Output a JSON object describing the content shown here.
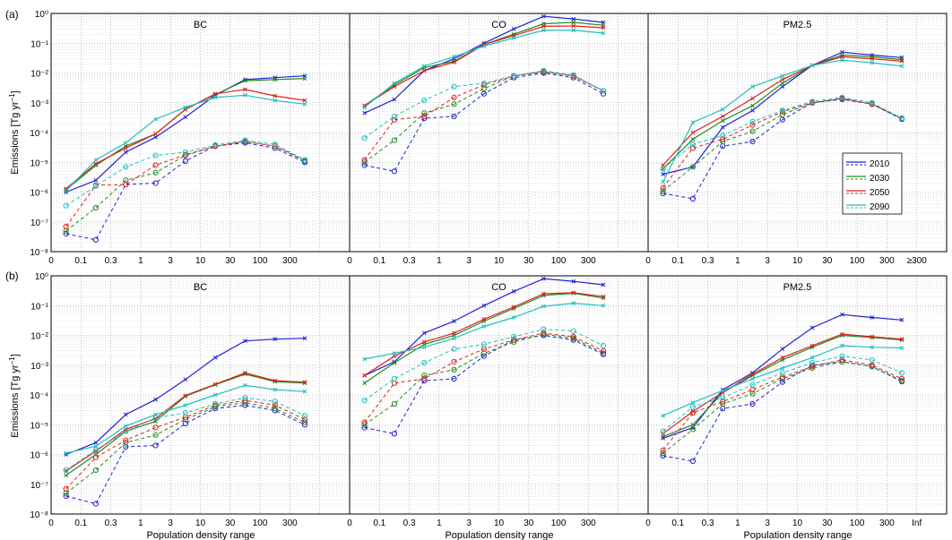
{
  "figure": {
    "row_labels": [
      "(a)",
      "(b)"
    ],
    "ylabel_main": "Emissions [Tg yr",
    "ylabel_sup": "−1",
    "ylabel_end": "]",
    "xlabel": "Population density range",
    "colors": {
      "2010": "#1f1fd6",
      "2030": "#1f8a1f",
      "2050": "#e01f1f",
      "2090": "#1fbfbf"
    },
    "legend": [
      "2010",
      "2030",
      "2050",
      "2090"
    ]
  },
  "chart_data": [
    {
      "panel": "a-BC",
      "type": "line",
      "title": "BC",
      "x": [
        0.05,
        0.2,
        0.5,
        1.5,
        5,
        15,
        50,
        150,
        500
      ],
      "x_tick_labels": [
        "0",
        "0.1",
        "0.3",
        "1",
        "3",
        "10",
        "30",
        "100",
        "300"
      ],
      "y_tick_labels": [
        "10⁰",
        "10⁻¹",
        "10⁻²",
        "10⁻³",
        "10⁻⁴",
        "10⁻⁵",
        "10⁻⁶",
        "10⁻⁷",
        "10⁻⁸"
      ],
      "ylim": [
        1e-08,
        1
      ],
      "yscale": "log",
      "grid": true,
      "series": [
        {
          "name": "2010",
          "style": "solid",
          "values": [
            1e-06,
            2.5e-06,
            2.2e-05,
            7e-05,
            0.00033,
            0.0018,
            0.006,
            0.007,
            0.008
          ]
        },
        {
          "name": "2030",
          "style": "solid",
          "values": [
            1.2e-06,
            8e-06,
            3.5e-05,
            9e-05,
            0.0006,
            0.0019,
            0.0055,
            0.006,
            0.0065
          ]
        },
        {
          "name": "2050",
          "style": "solid",
          "values": [
            1.3e-06,
            9e-06,
            3e-05,
            9e-05,
            0.0006,
            0.002,
            0.0028,
            0.0017,
            0.0012
          ]
        },
        {
          "name": "2090",
          "style": "solid",
          "values": [
            1.1e-06,
            1.2e-05,
            4.5e-05,
            0.00028,
            0.0007,
            0.0015,
            0.0018,
            0.0012,
            0.0009
          ]
        },
        {
          "name": "2010",
          "style": "dashed",
          "values": [
            4e-08,
            2.5e-08,
            1.8e-06,
            2e-06,
            1.1e-05,
            3.5e-05,
            4.5e-05,
            3e-05,
            1e-05
          ]
        },
        {
          "name": "2030",
          "style": "dashed",
          "values": [
            5e-08,
            3e-07,
            2.5e-06,
            4.5e-06,
            1.7e-05,
            3.5e-05,
            5e-05,
            3.5e-05,
            1.1e-05
          ]
        },
        {
          "name": "2050",
          "style": "dashed",
          "values": [
            7e-08,
            1.7e-06,
            1.8e-06,
            8e-06,
            1.8e-05,
            3.5e-05,
            5e-05,
            3.5e-05,
            1.2e-05
          ]
        },
        {
          "name": "2090",
          "style": "dashed",
          "values": [
            3.5e-07,
            1.6e-06,
            7e-06,
            1.7e-05,
            2.2e-05,
            3.8e-05,
            5.5e-05,
            4e-05,
            1.2e-05
          ]
        }
      ]
    },
    {
      "panel": "a-CO",
      "type": "line",
      "title": "CO",
      "x": [
        0.05,
        0.2,
        0.5,
        1.5,
        5,
        15,
        50,
        150,
        500
      ],
      "x_tick_labels": [
        "0",
        "0.1",
        "0.3",
        "1",
        "3",
        "10",
        "30",
        "100",
        "300"
      ],
      "ylim": [
        1e-08,
        1
      ],
      "yscale": "log",
      "grid": true,
      "series": [
        {
          "name": "2010",
          "style": "solid",
          "values": [
            0.00045,
            0.0013,
            0.012,
            0.03,
            0.1,
            0.3,
            0.8,
            0.65,
            0.5
          ]
        },
        {
          "name": "2030",
          "style": "solid",
          "values": [
            0.0008,
            0.004,
            0.015,
            0.025,
            0.09,
            0.2,
            0.45,
            0.5,
            0.4
          ]
        },
        {
          "name": "2050",
          "style": "solid",
          "values": [
            0.0008,
            0.0035,
            0.012,
            0.023,
            0.09,
            0.18,
            0.37,
            0.38,
            0.33
          ]
        },
        {
          "name": "2090",
          "style": "solid",
          "values": [
            0.0007,
            0.0045,
            0.017,
            0.035,
            0.08,
            0.15,
            0.27,
            0.27,
            0.22
          ]
        },
        {
          "name": "2010",
          "style": "dashed",
          "values": [
            8e-06,
            5e-06,
            0.0003,
            0.00035,
            0.002,
            0.007,
            0.01,
            0.007,
            0.002
          ]
        },
        {
          "name": "2030",
          "style": "dashed",
          "values": [
            1e-05,
            5.5e-05,
            0.00045,
            0.0009,
            0.003,
            0.008,
            0.011,
            0.008,
            0.0025
          ]
        },
        {
          "name": "2050",
          "style": "dashed",
          "values": [
            1.2e-05,
            0.00027,
            0.00035,
            0.0015,
            0.004,
            0.008,
            0.011,
            0.008,
            0.0025
          ]
        },
        {
          "name": "2090",
          "style": "dashed",
          "values": [
            6.5e-05,
            0.00035,
            0.0012,
            0.0035,
            0.0045,
            0.008,
            0.012,
            0.0085,
            0.0025
          ]
        }
      ]
    },
    {
      "panel": "a-PM2.5",
      "type": "line",
      "title": "PM2.5",
      "x": [
        0.05,
        0.2,
        0.5,
        1.5,
        5,
        15,
        50,
        150,
        500
      ],
      "x_tick_labels": [
        "0",
        "0.1",
        "0.3",
        "1",
        "3",
        "10",
        "30",
        "100",
        "300",
        "≥300"
      ],
      "ylim": [
        1e-08,
        1
      ],
      "yscale": "log",
      "grid": true,
      "legend_position": "center-right",
      "series": [
        {
          "name": "2010",
          "style": "solid",
          "values": [
            4e-06,
            7e-06,
            0.00015,
            0.00055,
            0.0035,
            0.018,
            0.05,
            0.04,
            0.033
          ]
        },
        {
          "name": "2030",
          "style": "solid",
          "values": [
            6e-06,
            6e-05,
            0.00025,
            0.0008,
            0.0045,
            0.018,
            0.04,
            0.035,
            0.028
          ]
        },
        {
          "name": "2050",
          "style": "solid",
          "values": [
            8e-06,
            0.0001,
            0.00035,
            0.0014,
            0.006,
            0.018,
            0.035,
            0.03,
            0.025
          ]
        },
        {
          "name": "2090",
          "style": "solid",
          "values": [
            2.2e-06,
            0.00022,
            0.0006,
            0.0035,
            0.008,
            0.018,
            0.027,
            0.022,
            0.017
          ]
        },
        {
          "name": "2010",
          "style": "dashed",
          "values": [
            9e-07,
            6e-07,
            3.5e-05,
            5e-05,
            0.00027,
            0.001,
            0.0013,
            0.0009,
            0.00028
          ]
        },
        {
          "name": "2030",
          "style": "dashed",
          "values": [
            1.1e-06,
            7e-06,
            5e-05,
            0.00011,
            0.0004,
            0.001,
            0.0014,
            0.0009,
            0.0003
          ]
        },
        {
          "name": "2050",
          "style": "dashed",
          "values": [
            1.4e-06,
            3e-05,
            6e-05,
            0.00018,
            0.0005,
            0.001,
            0.0014,
            0.0009,
            0.0003
          ]
        },
        {
          "name": "2090",
          "style": "dashed",
          "values": [
            6e-06,
            4e-05,
            8e-05,
            0.00023,
            0.00055,
            0.0011,
            0.0015,
            0.001,
            0.0003
          ]
        }
      ]
    },
    {
      "panel": "b-BC",
      "type": "line",
      "title": "BC",
      "x": [
        0.05,
        0.2,
        0.5,
        1.5,
        5,
        15,
        50,
        150,
        500
      ],
      "x_tick_labels": [
        "0",
        "0.1",
        "0.3",
        "1",
        "3",
        "10",
        "30",
        "100",
        "300"
      ],
      "y_tick_labels": [
        "10⁰",
        "10⁻¹",
        "10⁻²",
        "10⁻³",
        "10⁻⁴",
        "10⁻⁵",
        "10⁻⁶",
        "10⁻⁷",
        "10⁻⁸"
      ],
      "ylim": [
        1e-08,
        1
      ],
      "yscale": "log",
      "grid": true,
      "series": [
        {
          "name": "2010",
          "style": "solid",
          "values": [
            1e-06,
            2.5e-06,
            2.2e-05,
            7e-05,
            0.00033,
            0.0018,
            0.0065,
            0.0075,
            0.008
          ]
        },
        {
          "name": "2030",
          "style": "solid",
          "values": [
            2e-07,
            1e-06,
            6e-06,
            1.3e-05,
            9e-05,
            0.00022,
            0.0005,
            0.00028,
            0.00025
          ]
        },
        {
          "name": "2050",
          "style": "solid",
          "values": [
            2.8e-07,
            1.3e-06,
            7e-06,
            1.6e-05,
            9.5e-05,
            0.00023,
            0.00055,
            0.0003,
            0.00027
          ]
        },
        {
          "name": "2090",
          "style": "solid",
          "values": [
            1.1e-06,
            1.9e-06,
            9e-06,
            2.2e-05,
            4.5e-05,
            0.0001,
            0.00021,
            0.00015,
            0.00013
          ]
        },
        {
          "name": "2010",
          "style": "dashed",
          "values": [
            4e-08,
            2.2e-08,
            1.8e-06,
            2e-06,
            1.1e-05,
            3.5e-05,
            4.5e-05,
            3e-05,
            1e-05
          ]
        },
        {
          "name": "2030",
          "style": "dashed",
          "values": [
            5e-08,
            3e-07,
            2.5e-06,
            4.5e-06,
            1.5e-05,
            4e-05,
            5.5e-05,
            3.5e-05,
            1.2e-05
          ]
        },
        {
          "name": "2050",
          "style": "dashed",
          "values": [
            7e-08,
            8e-07,
            3e-06,
            8e-06,
            1.8e-05,
            4.5e-05,
            6.5e-05,
            4.5e-05,
            1.5e-05
          ]
        },
        {
          "name": "2090",
          "style": "dashed",
          "values": [
            3e-07,
            1.4e-06,
            6e-06,
            1.7e-05,
            2.5e-05,
            5e-05,
            8e-05,
            6e-05,
            2e-05
          ]
        }
      ]
    },
    {
      "panel": "b-CO",
      "type": "line",
      "title": "CO",
      "x": [
        0.05,
        0.2,
        0.5,
        1.5,
        5,
        15,
        50,
        150,
        500
      ],
      "x_tick_labels": [
        "0",
        "0.1",
        "0.3",
        "1",
        "3",
        "10",
        "30",
        "100",
        "300"
      ],
      "ylim": [
        1e-08,
        1
      ],
      "yscale": "log",
      "grid": true,
      "series": [
        {
          "name": "2010",
          "style": "solid",
          "values": [
            0.00045,
            0.0013,
            0.012,
            0.03,
            0.1,
            0.3,
            0.8,
            0.65,
            0.5
          ]
        },
        {
          "name": "2030",
          "style": "solid",
          "values": [
            0.00025,
            0.0012,
            0.005,
            0.01,
            0.03,
            0.08,
            0.22,
            0.26,
            0.18
          ]
        },
        {
          "name": "2050",
          "style": "solid",
          "values": [
            0.00045,
            0.002,
            0.006,
            0.012,
            0.035,
            0.09,
            0.25,
            0.27,
            0.2
          ]
        },
        {
          "name": "2090",
          "style": "solid",
          "values": [
            0.0016,
            0.0025,
            0.004,
            0.008,
            0.02,
            0.04,
            0.095,
            0.12,
            0.1
          ]
        },
        {
          "name": "2010",
          "style": "dashed",
          "values": [
            8e-06,
            5e-06,
            0.0003,
            0.00035,
            0.002,
            0.007,
            0.01,
            0.007,
            0.0023
          ]
        },
        {
          "name": "2030",
          "style": "dashed",
          "values": [
            1e-05,
            5e-05,
            0.00045,
            0.0007,
            0.0025,
            0.006,
            0.011,
            0.008,
            0.0025
          ]
        },
        {
          "name": "2050",
          "style": "dashed",
          "values": [
            1.2e-05,
            0.00025,
            0.00035,
            0.0013,
            0.0035,
            0.007,
            0.012,
            0.009,
            0.003
          ]
        },
        {
          "name": "2090",
          "style": "dashed",
          "values": [
            6.5e-05,
            0.00035,
            0.0012,
            0.0035,
            0.005,
            0.009,
            0.016,
            0.014,
            0.0045
          ]
        }
      ]
    },
    {
      "panel": "b-PM2.5",
      "type": "line",
      "title": "PM2.5",
      "x": [
        0.05,
        0.2,
        0.5,
        1.5,
        5,
        15,
        50,
        150,
        500
      ],
      "x_tick_labels": [
        "0",
        "0.1",
        "0.3",
        "1",
        "3",
        "10",
        "30",
        "100",
        "300",
        "Inf"
      ],
      "ylim": [
        1e-08,
        1
      ],
      "yscale": "log",
      "grid": true,
      "series": [
        {
          "name": "2010",
          "style": "solid",
          "values": [
            3.5e-06,
            8e-06,
            0.00015,
            0.00055,
            0.0035,
            0.018,
            0.05,
            0.04,
            0.033
          ]
        },
        {
          "name": "2030",
          "style": "solid",
          "values": [
            4e-06,
            1e-05,
            0.00012,
            0.00045,
            0.0015,
            0.004,
            0.01,
            0.0085,
            0.007
          ]
        },
        {
          "name": "2050",
          "style": "solid",
          "values": [
            5e-06,
            2.8e-05,
            0.00012,
            0.0005,
            0.0018,
            0.0045,
            0.011,
            0.009,
            0.0075
          ]
        },
        {
          "name": "2090",
          "style": "solid",
          "values": [
            2e-05,
            5.5e-05,
            0.00014,
            0.00035,
            0.0008,
            0.0018,
            0.0045,
            0.004,
            0.0038
          ]
        },
        {
          "name": "2010",
          "style": "dashed",
          "values": [
            9e-07,
            6e-07,
            3.5e-05,
            5e-05,
            0.00027,
            0.001,
            0.0013,
            0.0009,
            0.00028
          ]
        },
        {
          "name": "2030",
          "style": "dashed",
          "values": [
            1.1e-06,
            7e-06,
            5e-05,
            0.00011,
            0.00035,
            0.0008,
            0.0013,
            0.0009,
            0.0003
          ]
        },
        {
          "name": "2050",
          "style": "dashed",
          "values": [
            1.4e-06,
            2.5e-05,
            6e-05,
            0.00015,
            0.0004,
            0.0009,
            0.0015,
            0.001,
            0.00035
          ]
        },
        {
          "name": "2090",
          "style": "dashed",
          "values": [
            6e-06,
            4e-05,
            8e-05,
            0.00022,
            0.00055,
            0.0012,
            0.002,
            0.0015,
            0.00055
          ]
        }
      ]
    }
  ]
}
